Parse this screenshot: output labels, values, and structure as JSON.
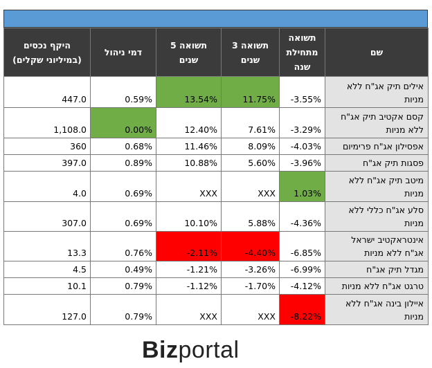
{
  "logo": {
    "part1": "Biz",
    "part2": "portal"
  },
  "colors": {
    "header_bar": "#5b9bd5",
    "header_row": "#3b3b3b",
    "name_col": "#e3e3e3",
    "green": "#70ad47",
    "red": "#ff0000"
  },
  "chart_data": {
    "type": "table",
    "columns": [
      "שם",
      "תשואה מתחילת שנה",
      "תשואה 3 שנים",
      "תשואה 5 שנים",
      "דמי ניהול",
      "היקף נכסים (במיליוני שקלים)"
    ],
    "rows": [
      {
        "name": "אילים תיק אג\"ח ללא מניות",
        "ytd": "-3.55%",
        "y3": "11.75%",
        "y5": "13.54%",
        "fee": "0.59%",
        "assets": "447.0",
        "hl": {
          "y3": "green",
          "y5": "green"
        }
      },
      {
        "name": "קסם אקטיב תיק אג\"ח ללא מניות",
        "ytd": "-3.29%",
        "y3": "7.61%",
        "y5": "12.40%",
        "fee": "0.00%",
        "assets": "1,108.0",
        "hl": {
          "fee": "green"
        }
      },
      {
        "name": "אפסילון אג\"ח פרימיום",
        "ytd": "-4.03%",
        "y3": "8.09%",
        "y5": "11.46%",
        "fee": "0.68%",
        "assets": "360",
        "hl": {}
      },
      {
        "name": "פסגות תיק אג\"ח",
        "ytd": "-3.96%",
        "y3": "5.60%",
        "y5": "10.88%",
        "fee": "0.89%",
        "assets": "397.0",
        "hl": {}
      },
      {
        "name": "מיטב תיק אג\"ח ללא מניות",
        "ytd": "1.03%",
        "y3": "XXX",
        "y5": "XXX",
        "fee": "0.69%",
        "assets": "4.0",
        "hl": {
          "ytd": "green"
        }
      },
      {
        "name": "סלע אג\"ח כללי ללא מניות",
        "ytd": "-4.36%",
        "y3": "5.88%",
        "y5": "10.10%",
        "fee": "0.69%",
        "assets": "307.0",
        "hl": {}
      },
      {
        "name": "אינטראקטיב ישראל אג\"ח ללא מניות",
        "ytd": "-6.85%",
        "y3": "-4.40%",
        "y5": "-2.11%",
        "fee": "0.76%",
        "assets": "13.3",
        "hl": {
          "y3": "red",
          "y5": "red"
        }
      },
      {
        "name": "מגדל תיק אג\"ח",
        "ytd": "-6.99%",
        "y3": "-3.26%",
        "y5": "-1.21%",
        "fee": "0.49%",
        "assets": "4.5",
        "hl": {}
      },
      {
        "name": "טרגט אג\"ח ללא מניות",
        "ytd": "-4.12%",
        "y3": "-1.70%",
        "y5": "-1.12%",
        "fee": "0.79%",
        "assets": "10.1",
        "hl": {}
      },
      {
        "name": "איילון בינה אג\"ח ללא מניות",
        "ytd": "-8.22%",
        "y3": "XXX",
        "y5": "XXX",
        "fee": "0.79%",
        "assets": "127.0",
        "hl": {
          "ytd": "red"
        }
      }
    ]
  }
}
